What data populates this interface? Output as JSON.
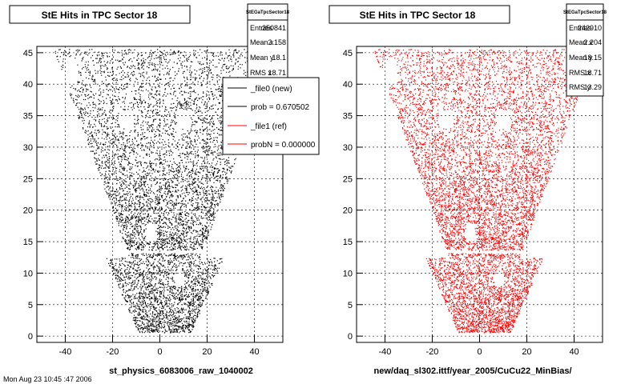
{
  "chart_data": [
    {
      "type": "scatter",
      "title": "StE Hits in TPC Sector 18",
      "xlabel": "st_physics_6083006_raw_1040002",
      "ylabel": "",
      "xlim": [
        -52,
        52
      ],
      "ylim": [
        -1,
        46
      ],
      "x_ticks": [
        -40,
        -20,
        0,
        20,
        40
      ],
      "y_ticks": [
        0,
        5,
        10,
        15,
        20,
        25,
        30,
        35,
        40,
        45
      ],
      "grid": true,
      "marker_color": "#000000",
      "stats": {
        "name": "StEGaTpcSector18",
        "rows": [
          {
            "label": "Entries",
            "value": "250841"
          },
          {
            "label": "Mean x",
            "value": "2.158"
          },
          {
            "label": "Mean y",
            "value": "18.1"
          },
          {
            "label": "RMS x",
            "value": "18.71"
          }
        ]
      },
      "legend": {
        "placement": "top-right",
        "entries": [
          {
            "label": "_file0 (new)",
            "color": "#000000"
          },
          {
            "label": "prob = 0.670502",
            "color": "#000000"
          },
          {
            "label": "_file1 (ref)",
            "color": "#ff0000"
          },
          {
            "label": "probN = 0.000000",
            "color": "#ff0000"
          }
        ]
      }
    },
    {
      "type": "scatter",
      "title": "StE Hits in TPC Sector 18",
      "xlabel": "new/daq_sl302.ittf/year_2005/CuCu22_MinBias/",
      "ylabel": "",
      "xlim": [
        -52,
        52
      ],
      "ylim": [
        -1,
        46
      ],
      "x_ticks": [
        -40,
        -20,
        0,
        20,
        40
      ],
      "y_ticks": [
        0,
        5,
        10,
        15,
        20,
        25,
        30,
        35,
        40,
        45
      ],
      "grid": true,
      "marker_color": "#ff0000",
      "stats": {
        "name": "StEGaTpcSector18",
        "rows": [
          {
            "label": "Entries",
            "value": "242910"
          },
          {
            "label": "Mean x",
            "value": "2.204"
          },
          {
            "label": "Mean y",
            "value": "18.15"
          },
          {
            "label": "RMS x",
            "value": "18.71"
          },
          {
            "label": "RMS y",
            "value": "13.29"
          }
        ]
      }
    }
  ],
  "footer_note": "Mon Aug 23 10:45 :47 2006"
}
